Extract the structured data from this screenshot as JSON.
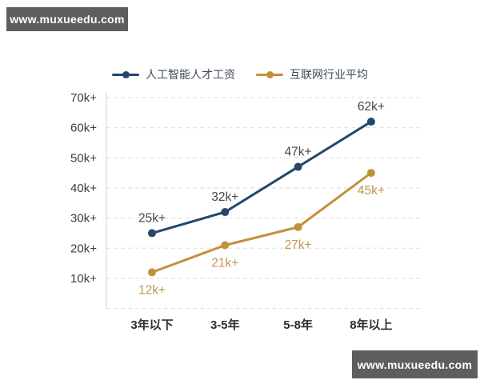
{
  "watermarks": {
    "top": "www.muxueedu.com",
    "bottom": "www.muxueedu.com"
  },
  "colors": {
    "background": "#ffffff",
    "watermark_background": "#5e5e5e",
    "watermark_text": "#ffffff",
    "grid_line": "#e3e3e3",
    "axis_line": "#d9d9d9",
    "tick_label": "#3c3c3c",
    "category_label": "#2e2e2e",
    "legend_text": "#3e4a5c"
  },
  "chart_data": {
    "type": "line",
    "title": "",
    "xlabel": "",
    "ylabel": "",
    "categories": [
      "3年以下",
      "3-5年",
      "5-8年",
      "8年以上"
    ],
    "series": [
      {
        "name": "人工智能人才工资",
        "color": "#24476b",
        "values": [
          25,
          32,
          47,
          62
        ],
        "point_labels": [
          "25k+",
          "32k+",
          "47k+",
          "62k+"
        ],
        "label_color": "#474747",
        "label_position": "above"
      },
      {
        "name": "互联网行业平均",
        "color": "#c2903b",
        "values": [
          12,
          21,
          27,
          45
        ],
        "point_labels": [
          "12k+",
          "21k+",
          "27k+",
          "45k+"
        ],
        "label_color": "#c3964e",
        "label_position": "below"
      }
    ],
    "y_ticks": [
      {
        "value": 10,
        "label": "10k+"
      },
      {
        "value": 20,
        "label": "20k+"
      },
      {
        "value": 30,
        "label": "30k+"
      },
      {
        "value": 40,
        "label": "40k+"
      },
      {
        "value": 50,
        "label": "50k+"
      },
      {
        "value": 60,
        "label": "60k+"
      },
      {
        "value": 70,
        "label": "70k+"
      }
    ],
    "ylim": [
      0,
      75
    ],
    "grid": "horizontal-dashed",
    "legend_position": "top"
  }
}
